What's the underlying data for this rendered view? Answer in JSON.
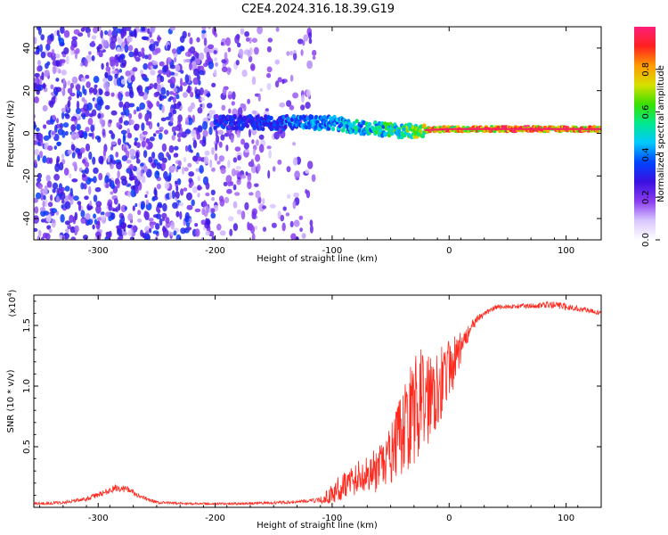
{
  "title": "C2E4.2024.316.18.39.G19",
  "chart_data": [
    {
      "type": "heatmap",
      "xlabel": "Height of straight line (km)",
      "ylabel": "Frequency (Hz)",
      "xlim": [
        -355,
        130
      ],
      "ylim": [
        -50,
        50
      ],
      "xticks": [
        -300,
        -200,
        -100,
        0,
        100
      ],
      "yticks": [
        -40,
        -20,
        0,
        20,
        40
      ],
      "colorbar": {
        "label": "Normalized spectral amplitude",
        "range": [
          0,
          1
        ],
        "ticks": [
          "0.0",
          "0.2",
          "0.4",
          "0.6",
          "0.8"
        ],
        "colors": [
          "#ffffff",
          "#d9c7ff",
          "#8a3cf0",
          "#3a10e0",
          "#0044ff",
          "#00c8ff",
          "#00e890",
          "#3ae000",
          "#d8e000",
          "#ff9a00",
          "#ff2020",
          "#ff1f7a"
        ]
      },
      "description": "Scattered weak energy (0.1-0.3) across all frequencies for heights below about -120 km; a coherent band near 0-8 Hz from -200 km converging to about 2 Hz, strongest (~0.9-1.0) from -20 to 130 km.",
      "ridge": {
        "x": [
          -200,
          -150,
          -100,
          -80,
          -60,
          -40,
          -20,
          0,
          50,
          100,
          130
        ],
        "y": [
          5,
          5,
          5,
          3,
          2,
          1,
          1.5,
          2,
          2,
          2,
          2
        ],
        "amplitude": [
          0.35,
          0.4,
          0.5,
          0.55,
          0.6,
          0.65,
          0.85,
          0.9,
          1.0,
          0.95,
          0.9
        ]
      }
    },
    {
      "type": "line",
      "xlabel": "Height of straight line (km)",
      "ylabel": "SNR (10 * v/v)",
      "yscale_label": "(x10",
      "yscale_exp": "4",
      "yscale_close": ")",
      "xlim": [
        -355,
        130
      ],
      "ylim": [
        0,
        1.75
      ],
      "xticks": [
        -300,
        -200,
        -100,
        0,
        100
      ],
      "yticks": [
        "0.5",
        "1.0",
        "1.5"
      ],
      "color": "#ff2a1f",
      "series": [
        {
          "name": "SNR",
          "x": [
            -355,
            -330,
            -310,
            -295,
            -285,
            -275,
            -265,
            -250,
            -220,
            -180,
            -140,
            -110,
            -100,
            -90,
            -80,
            -70,
            -60,
            -50,
            -40,
            -30,
            -20,
            -10,
            0,
            10,
            20,
            30,
            40,
            60,
            90,
            110,
            130
          ],
          "y": [
            0.03,
            0.04,
            0.07,
            0.12,
            0.16,
            0.15,
            0.09,
            0.04,
            0.03,
            0.03,
            0.04,
            0.06,
            0.12,
            0.2,
            0.25,
            0.3,
            0.32,
            0.45,
            0.65,
            0.85,
            0.95,
            1.05,
            1.15,
            1.32,
            1.5,
            1.6,
            1.65,
            1.66,
            1.67,
            1.64,
            1.6
          ],
          "noise": [
            0.02,
            0.02,
            0.03,
            0.04,
            0.05,
            0.05,
            0.03,
            0.02,
            0.015,
            0.015,
            0.02,
            0.03,
            0.08,
            0.12,
            0.14,
            0.15,
            0.2,
            0.25,
            0.35,
            0.45,
            0.45,
            0.35,
            0.25,
            0.15,
            0.08,
            0.05,
            0.03,
            0.03,
            0.05,
            0.04,
            0.03
          ]
        }
      ]
    }
  ]
}
